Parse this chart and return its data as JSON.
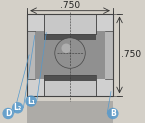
{
  "bg_color": "#d4d0c8",
  "bearing_color_outer": "#c0c0c0",
  "bearing_color_mid": "#a0a0a0",
  "bearing_color_dark": "#606060",
  "ball_color": "#888888",
  "dim_color": "#333333",
  "label_color": "#5599cc",
  "dim_h_text": ".750",
  "dim_v_text": ".750",
  "label_d": "D",
  "label_l1": "L₁",
  "label_l2": "L₂",
  "label_b": "B",
  "fig_bg": "#d4d0c8"
}
